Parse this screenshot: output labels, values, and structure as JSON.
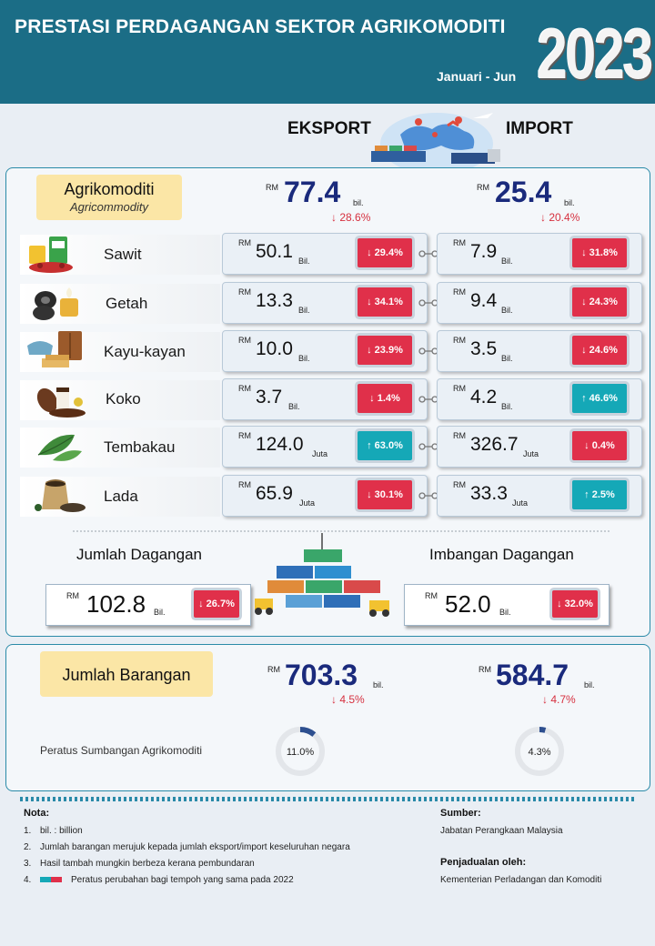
{
  "header": {
    "title": "PRESTASI PERDAGANGAN SEKTOR AGRIKOMODITI",
    "period": "Januari - Jun",
    "year": "2023"
  },
  "columns": {
    "export": "EKSPORT",
    "import": "IMPORT"
  },
  "agri": {
    "tag_ms": "Agrikomoditi",
    "tag_en": "Agricommodity",
    "currency": "RM",
    "unit": "bil.",
    "export_total": "77.4",
    "export_change": "↓ 28.6%",
    "import_total": "25.4",
    "import_change": "↓ 20.4%"
  },
  "rows": [
    {
      "name": "Sawit",
      "icon": "palm-oil-icon",
      "export": {
        "value": "50.1",
        "unit": "Bil.",
        "change": "↓ 29.4%",
        "dir": "down"
      },
      "import": {
        "value": "7.9",
        "unit": "Bil.",
        "change": "↓ 31.8%",
        "dir": "down"
      }
    },
    {
      "name": "Getah",
      "icon": "rubber-tyre-icon",
      "export": {
        "value": "13.3",
        "unit": "Bil.",
        "change": "↓ 34.1%",
        "dir": "down"
      },
      "import": {
        "value": "9.4",
        "unit": "Bil.",
        "change": "↓ 24.3%",
        "dir": "down"
      }
    },
    {
      "name": "Kayu-kayan",
      "icon": "timber-furniture-icon",
      "export": {
        "value": "10.0",
        "unit": "Bil.",
        "change": "↓ 23.9%",
        "dir": "down"
      },
      "import": {
        "value": "3.5",
        "unit": "Bil.",
        "change": "↓ 24.6%",
        "dir": "down"
      }
    },
    {
      "name": "Koko",
      "icon": "cocoa-icon",
      "export": {
        "value": "3.7",
        "unit": "Bil.",
        "change": "↓ 1.4%",
        "dir": "down"
      },
      "import": {
        "value": "4.2",
        "unit": "Bil.",
        "change": "↑ 46.6%",
        "dir": "up"
      }
    },
    {
      "name": "Tembakau",
      "icon": "tobacco-leaf-icon",
      "export": {
        "value": "124.0",
        "unit": "Juta",
        "change": "↑ 63.0%",
        "dir": "up"
      },
      "import": {
        "value": "326.7",
        "unit": "Juta",
        "change": "↓ 0.4%",
        "dir": "down"
      }
    },
    {
      "name": "Lada",
      "icon": "pepper-sack-icon",
      "export": {
        "value": "65.9",
        "unit": "Juta",
        "change": "↓ 30.1%",
        "dir": "down"
      },
      "import": {
        "value": "33.3",
        "unit": "Juta",
        "change": "↑ 2.5%",
        "dir": "up"
      }
    }
  ],
  "summary": {
    "total_trade_label": "Jumlah Dagangan",
    "total_trade_value": "102.8",
    "total_trade_unit": "Bil.",
    "total_trade_change": "↓ 26.7%",
    "balance_label": "Imbangan Dagangan",
    "balance_value": "52.0",
    "balance_unit": "Bil.",
    "balance_change": "↓ 32.0%"
  },
  "goods": {
    "tag": "Jumlah Barangan",
    "export_total": "703.3",
    "export_unit": "bil.",
    "export_change": "↓ 4.5%",
    "import_total": "584.7",
    "import_unit": "bil.",
    "import_change": "↓ 4.7%",
    "share_label": "Peratus Sumbangan Agrikomoditi",
    "export_share": 11.0,
    "export_share_label": "11.0%",
    "import_share": 4.3,
    "import_share_label": "4.3%"
  },
  "notes": {
    "title": "Nota:",
    "items": [
      "bil. : billion",
      "Jumlah barangan merujuk kepada jumlah eksport/import keseluruhan negara",
      "Hasil tambah mungkin berbeza kerana pembundaran",
      "Peratus perubahan bagi tempoh yang sama pada 2022"
    ],
    "source_title": "Sumber:",
    "source": "Jabatan Perangkaan Malaysia",
    "sched_title": "Penjadualan oleh:",
    "sched": "Kementerian Perladangan dan Komoditi"
  },
  "colors": {
    "header": "#1b6d86",
    "value": "#1a2a7c",
    "down": "#e0304a",
    "up": "#15a8b7",
    "border": "#2a8aa8"
  }
}
